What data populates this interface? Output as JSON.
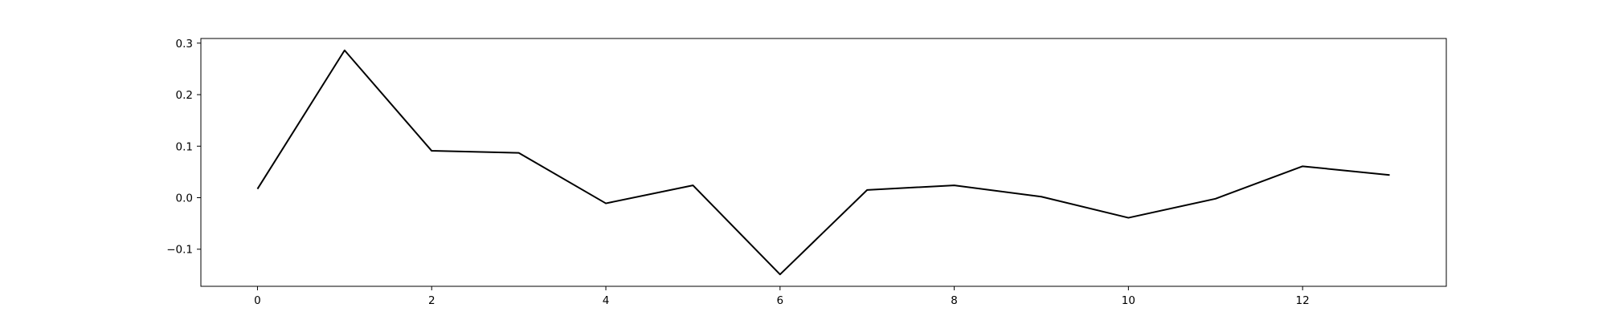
{
  "chart_data": {
    "type": "line",
    "title": "",
    "xlabel": "",
    "ylabel": "",
    "x": [
      0,
      1,
      2,
      3,
      4,
      5,
      6,
      7,
      8,
      9,
      10,
      11,
      12,
      13
    ],
    "series": [
      {
        "values": [
          0.017,
          0.286,
          0.091,
          0.087,
          -0.011,
          0.024,
          -0.149,
          0.015,
          0.024,
          0.002,
          -0.039,
          -0.002,
          0.061,
          0.044
        ],
        "color": "#000000"
      }
    ],
    "xlim": [
      -0.65,
      13.65
    ],
    "ylim": [
      -0.172,
      0.309
    ],
    "xticks": [
      0,
      2,
      4,
      6,
      8,
      10,
      12
    ],
    "xtick_labels": [
      "0",
      "2",
      "4",
      "6",
      "8",
      "10",
      "12"
    ],
    "yticks": [
      -0.1,
      0.0,
      0.1,
      0.2,
      0.3
    ],
    "ytick_labels": [
      "−0.1",
      "0.0",
      "0.1",
      "0.2",
      "0.3"
    ],
    "grid": false,
    "legend": false
  }
}
